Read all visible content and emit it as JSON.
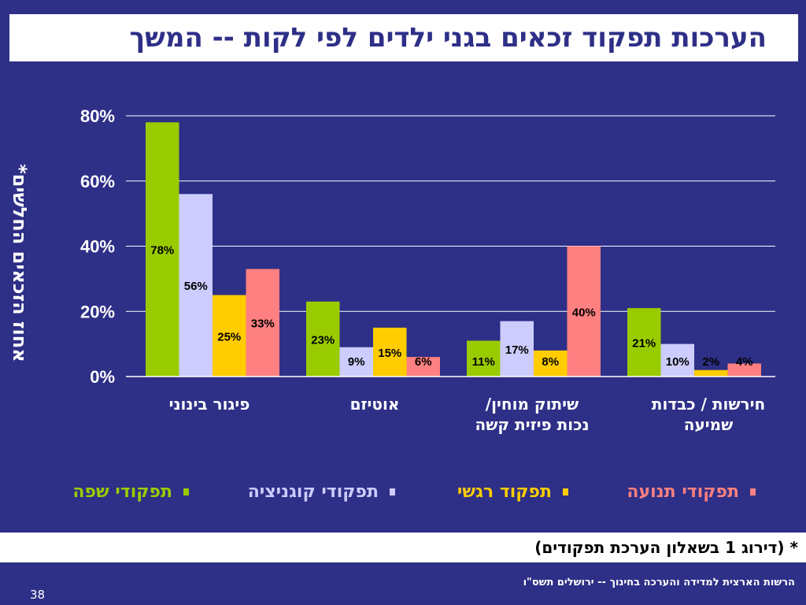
{
  "slide": {
    "title": "הערכות תפקוד זכאים בגני ילדים לפי לקות  -- המשך",
    "footnote": "* (דירוג 1 בשאלון הערכת תפקודים)",
    "source": "הרשות הארצית למדידה והערכה בחינוך  -- ירושלים תשס\"ו",
    "page_number": "38"
  },
  "chart_data": {
    "type": "bar",
    "ylabel": "אחוז הזכאים החלשים*",
    "ylim": [
      0,
      80
    ],
    "yticks": [
      "0%",
      "20%",
      "40%",
      "60%",
      "80%"
    ],
    "grid": true,
    "legend_position": "bottom",
    "categories": [
      "פיגור בינוני",
      "אוטיזם",
      "שיתוק מוחין/ נכות פיזית קשה",
      "חירשות / כבדות שמיעה"
    ],
    "series": [
      {
        "name": "תפקודי שפה",
        "color": "#99cc00",
        "values": [
          78,
          23,
          11,
          21
        ],
        "labels": [
          "78%",
          "23%",
          "11%",
          "21%"
        ]
      },
      {
        "name": "תפקודי קוגניציה",
        "color": "#ccccff",
        "values": [
          56,
          9,
          17,
          10
        ],
        "labels": [
          "56%",
          "9%",
          "17%",
          "10%"
        ]
      },
      {
        "name": "תפקוד רגשי",
        "color": "#ffcc00",
        "values": [
          25,
          15,
          8,
          2
        ],
        "labels": [
          "25%",
          "15%",
          "8%",
          "2%"
        ]
      },
      {
        "name": "תפקודי תנועה",
        "color": "#ff8080",
        "values": [
          33,
          6,
          40,
          4
        ],
        "labels": [
          "33%",
          "6%",
          "40%",
          "4%"
        ]
      }
    ]
  }
}
